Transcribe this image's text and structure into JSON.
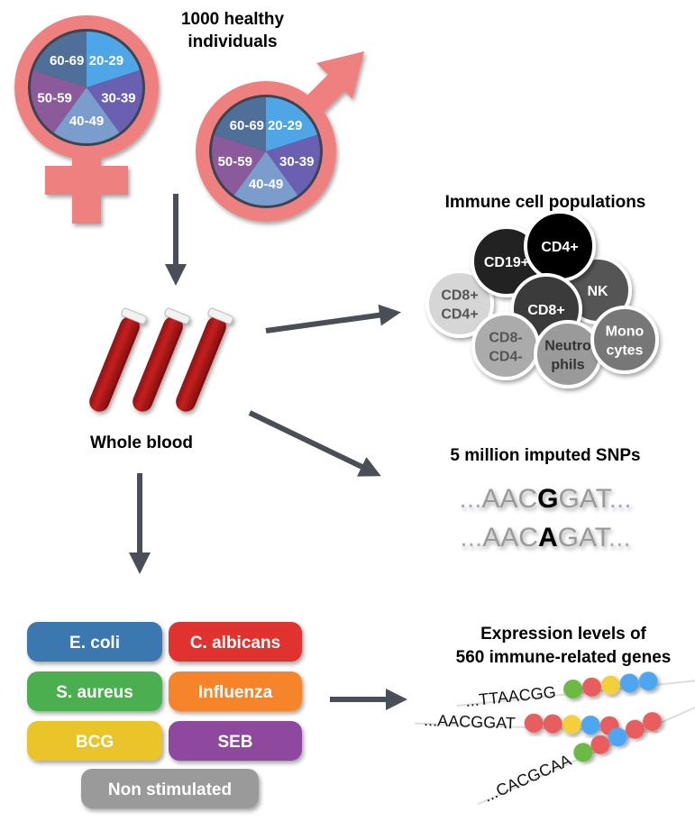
{
  "title": [
    "1000 healthy",
    "individuals"
  ],
  "age_groups": [
    {
      "label": "20-29",
      "color": "#4ea6e6"
    },
    {
      "label": "30-39",
      "color": "#6a5fb0"
    },
    {
      "label": "40-49",
      "color": "#7a9dcd"
    },
    {
      "label": "50-59",
      "color": "#8a5a9a"
    },
    {
      "label": "60-69",
      "color": "#4f6f98"
    }
  ],
  "symbol_color": "#ee8080",
  "arrow_color": "#4a4f57",
  "blood_label": "Whole blood",
  "immune": {
    "title": "Immune cell populations",
    "cells": [
      {
        "lines": [
          "CD8+",
          "CD4+"
        ],
        "color": "#d6d6d6",
        "text": "#555"
      },
      {
        "lines": [
          "CD19+"
        ],
        "color": "#222222",
        "text": "#fff"
      },
      {
        "lines": [
          "NK"
        ],
        "color": "#555555",
        "text": "#fff"
      },
      {
        "lines": [
          "CD4+"
        ],
        "color": "#000000",
        "text": "#fff"
      },
      {
        "lines": [
          "CD8+"
        ],
        "color": "#3a3a3a",
        "text": "#fff"
      },
      {
        "lines": [
          "CD8-",
          "CD4-"
        ],
        "color": "#ababab",
        "text": "#555"
      },
      {
        "lines": [
          "Neutro",
          "phils"
        ],
        "color": "#9a9a9a",
        "text": "#333"
      },
      {
        "lines": [
          "Mono",
          "cytes"
        ],
        "color": "#777777",
        "text": "#fff"
      }
    ]
  },
  "snps": {
    "title": "5 million imputed SNPs",
    "line1": {
      "pre": "...",
      "a": "AAC",
      "snp": "G",
      "b": "GAT",
      "post": "..."
    },
    "line2": {
      "pre": "...",
      "a": "AAC",
      "snp": "A",
      "b": "GAT",
      "post": "..."
    }
  },
  "stimuli": [
    {
      "label": "E. coli",
      "color": "#3a78b0"
    },
    {
      "label": "C. albicans",
      "color": "#e0312f"
    },
    {
      "label": "S. aureus",
      "color": "#4caf50"
    },
    {
      "label": "Influenza",
      "color": "#f5842a"
    },
    {
      "label": "BCG",
      "color": "#e9c52b"
    },
    {
      "label": "SEB",
      "color": "#8e4a9e"
    },
    {
      "label": "Non stimulated",
      "color": "#9a9a9a"
    }
  ],
  "expression": {
    "title": [
      "Expression levels of",
      "560 immune-related genes"
    ],
    "genes": [
      {
        "seq": "...TTAACGG",
        "beads": [
          "#6cba45",
          "#e85d5d",
          "#f3cf3b",
          "#4fa6f0",
          "#4fa6f0"
        ]
      },
      {
        "seq": "...AACGGAT",
        "beads": [
          "#e85d5d",
          "#e85d5d",
          "#f3cf3b",
          "#4fa6f0",
          "#e85d5d"
        ]
      },
      {
        "seq": "...CACGCAA",
        "beads": [
          "#6cba45",
          "#e85d5d",
          "#4fa6f0",
          "#e85d5d",
          "#e85d5d"
        ]
      }
    ]
  }
}
